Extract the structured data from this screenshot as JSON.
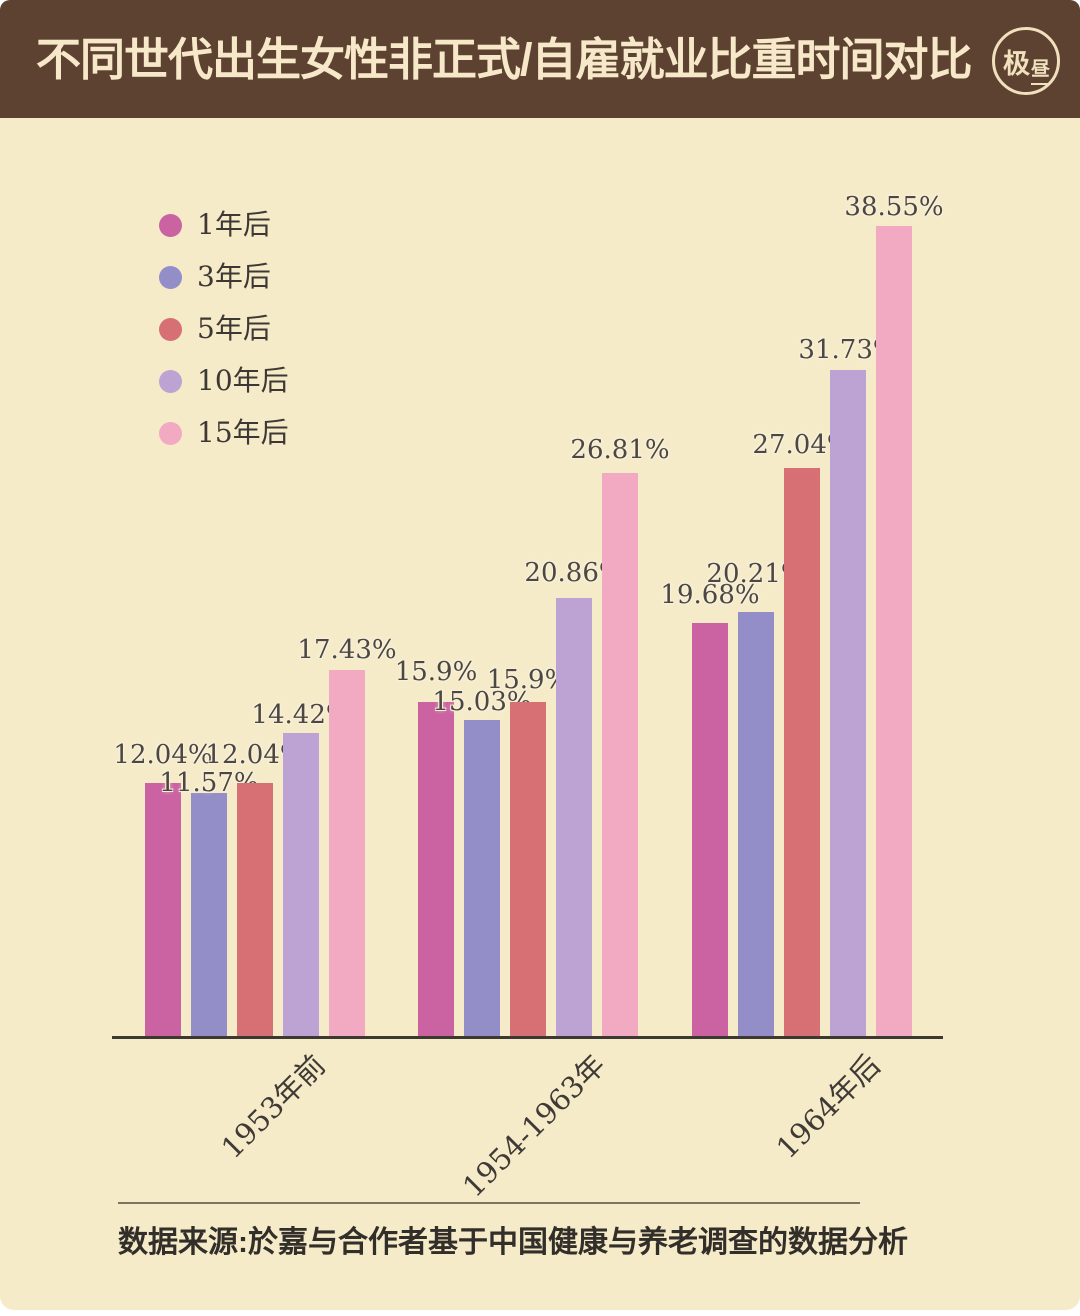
{
  "header": {
    "title": "不同世代出生女性非正式/自雇就业比重时间对比",
    "logo": {
      "char_left": "极",
      "char_right": "昼"
    }
  },
  "chart_data": {
    "type": "bar",
    "title": "不同世代出生女性非正式/自雇就业比重时间对比",
    "categories": [
      "1953年前",
      "1954-1963年",
      "1964年后"
    ],
    "series": [
      {
        "name": "1年后",
        "color": "#cb62a2",
        "values": [
          12.04,
          15.9,
          19.68
        ]
      },
      {
        "name": "3年后",
        "color": "#938dc8",
        "values": [
          11.57,
          15.03,
          20.21
        ]
      },
      {
        "name": "5年后",
        "color": "#d7707 4",
        "values": [
          12.04,
          15.9,
          27.04
        ]
      },
      {
        "name": "10年后",
        "color": "#bda3d3",
        "values": [
          14.42,
          20.86,
          31.73
        ]
      },
      {
        "name": "15年后",
        "color": "#f2a9c2",
        "values": [
          17.43,
          26.81,
          38.55
        ]
      }
    ],
    "value_suffix": "%",
    "ylim": [
      0,
      40
    ],
    "grid": false,
    "legend_position": "upper-left",
    "bar_value_labels": true
  },
  "footer": {
    "source": "数据来源:於嘉与合作者基于中国健康与养老调查的数据分析"
  },
  "theme": {
    "background": "#f5ebc9",
    "header_bg": "#5d4232",
    "header_text": "#f6e8c8",
    "label_text": "#4c4742",
    "axis_color": "#3d3831"
  }
}
